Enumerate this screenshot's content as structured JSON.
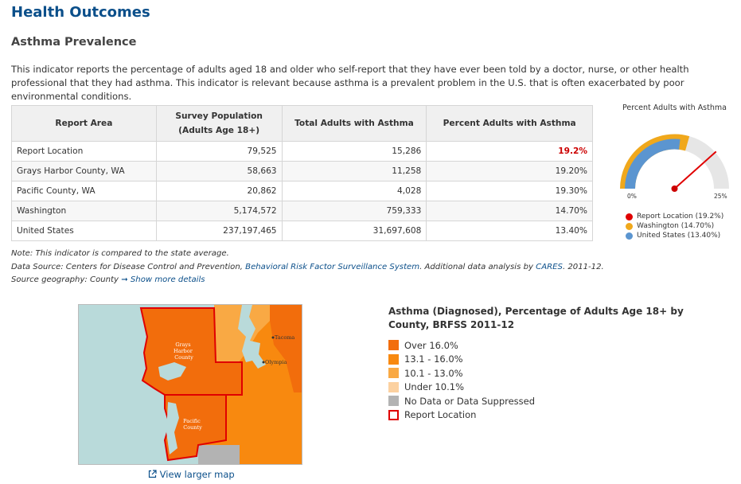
{
  "page_title": "Health Outcomes",
  "section_title": "Asthma Prevalence",
  "description": "This indicator reports the percentage of adults aged 18 and older who self-report that they have ever been told by a doctor, nurse, or other health professional that they had asthma. This indicator is relevant because asthma is a prevalent problem in the U.S. that is often exacerbated by poor environmental conditions.",
  "table": {
    "headers": [
      "Report Area",
      "Survey Population",
      "(Adults Age 18+)",
      "Total Adults with Asthma",
      "Percent Adults with Asthma"
    ],
    "rows": [
      {
        "area": "Report Location",
        "population": "79,525",
        "total": "15,286",
        "percent": "19.2%"
      },
      {
        "area": "Grays Harbor County, WA",
        "population": "58,663",
        "total": "11,258",
        "percent": "19.20%"
      },
      {
        "area": "Pacific County, WA",
        "population": "20,862",
        "total": "4,028",
        "percent": "19.30%"
      },
      {
        "area": "Washington",
        "population": "5,174,572",
        "total": "759,333",
        "percent": "14.70%"
      },
      {
        "area": "United States",
        "population": "237,197,465",
        "total": "31,697,608",
        "percent": "13.40%"
      }
    ]
  },
  "gauge": {
    "title": "Percent Adults with Asthma",
    "min_label": "0%",
    "max_label": "25%",
    "max_value": 25,
    "report_location_value": 19.2,
    "washington_value": 14.7,
    "us_value": 13.4,
    "legend": [
      {
        "label": "Report Location (19.2%)",
        "color": "#e00000"
      },
      {
        "label": "Washington (14.70%)",
        "color": "#f0a81c"
      },
      {
        "label": "United States (13.40%)",
        "color": "#5b95d0"
      }
    ]
  },
  "notes": {
    "note": "Note: This indicator is compared to the state average.",
    "source_prefix": "Data Source: Centers for Disease Control and Prevention, ",
    "source_link": "Behavioral Risk Factor Surveillance System",
    "source_mid": ". Additional data analysis by ",
    "cares_link": "CARES",
    "source_suffix": ". 2011-12.",
    "geo_text": "Source geography: County",
    "arrow": "➞",
    "details_link": "Show more details"
  },
  "map": {
    "labels": {
      "grays_harbor": [
        "Grays",
        "Harbor",
        "County"
      ],
      "pacific": [
        "Pacific",
        "County"
      ],
      "tacoma": "Tacoma",
      "olympia": "Olympia"
    },
    "link_icon": "external-link-icon",
    "link_text": "View larger map"
  },
  "legend": {
    "title": "Asthma (Diagnosed), Percentage of Adults Age 18+ by County, BRFSS 2011-12",
    "items": [
      {
        "label": "Over 16.0%",
        "color": "#f26d0c"
      },
      {
        "label": "13.1 - 16.0%",
        "color": "#f8890f"
      },
      {
        "label": "10.1 - 13.0%",
        "color": "#f9a944"
      },
      {
        "label": "Under 10.1%",
        "color": "#fcd1a0"
      },
      {
        "label": "No Data or Data Suppressed",
        "color": "#b3b3b3"
      },
      {
        "label": "Report Location",
        "color": "#e00000"
      }
    ]
  },
  "colors": {
    "heading": "#0b4f8a",
    "water": "#b9dada",
    "highlight": "#cc0000"
  }
}
